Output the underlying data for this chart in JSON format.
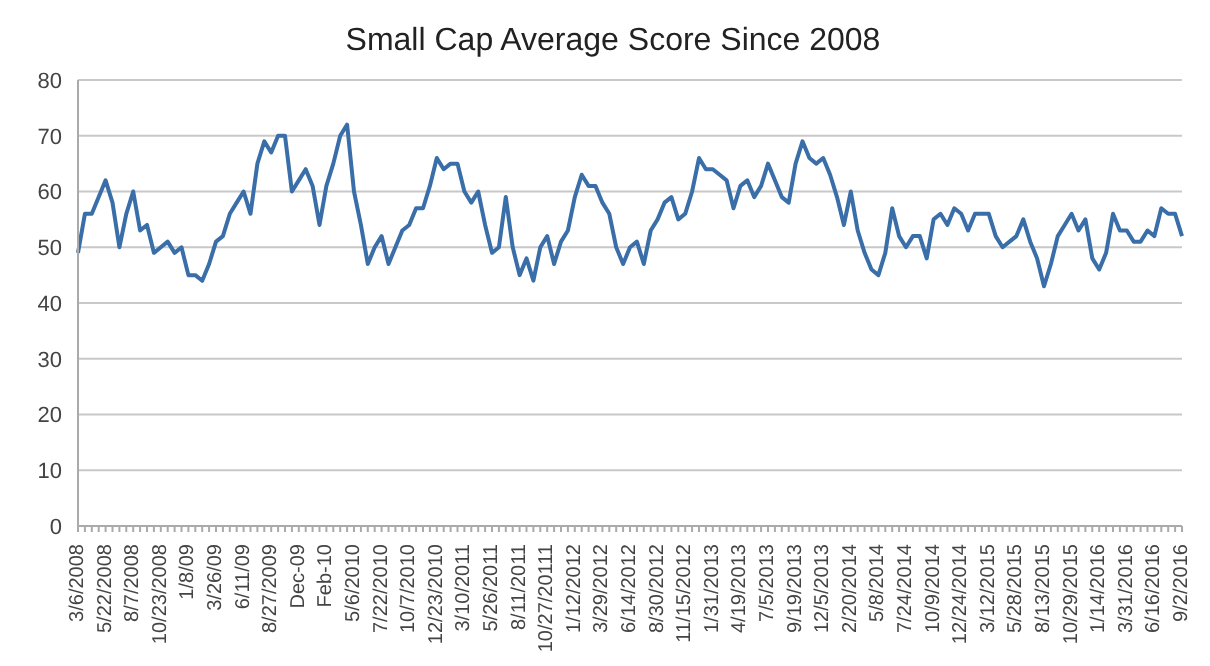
{
  "chart_data": {
    "type": "line",
    "title": "Small Cap Average Score Since 2008",
    "categories": [
      "3/6/2008",
      null,
      null,
      null,
      "5/22/2008",
      null,
      null,
      null,
      "8/7/2008",
      null,
      null,
      null,
      "10/23/2008",
      null,
      null,
      null,
      "1/8/09",
      null,
      null,
      null,
      "3/26/09",
      null,
      null,
      null,
      "6/11/09",
      null,
      null,
      null,
      "8/27/2009",
      null,
      null,
      null,
      "Dec-09",
      null,
      null,
      null,
      "Feb-10",
      null,
      null,
      null,
      "5/6/2010",
      null,
      null,
      null,
      "7/22/2010",
      null,
      null,
      null,
      "10/7/2010",
      null,
      null,
      null,
      "12/23/2010",
      null,
      null,
      null,
      "3/10/2011",
      null,
      null,
      null,
      "5/26/2011",
      null,
      null,
      null,
      "8/11/2011",
      null,
      null,
      null,
      "10/27/20111",
      null,
      null,
      null,
      "1/12/2012",
      null,
      null,
      null,
      "3/29/2012",
      null,
      null,
      null,
      "6/14/2012",
      null,
      null,
      null,
      "8/30/2012",
      null,
      null,
      null,
      "11/15/2012",
      null,
      null,
      null,
      "1/31/2013",
      null,
      null,
      null,
      "4/19/2013",
      null,
      null,
      null,
      "7/5/2013",
      null,
      null,
      null,
      "9/19/2013",
      null,
      null,
      null,
      "12/5/2013",
      null,
      null,
      null,
      "2/20/2014",
      null,
      null,
      null,
      "5/8/2014",
      null,
      null,
      null,
      "7/24/2014",
      null,
      null,
      null,
      "10/9/2014",
      null,
      null,
      null,
      "12/24/2014",
      null,
      null,
      null,
      "3/12/2015",
      null,
      null,
      null,
      "5/28/2015",
      null,
      null,
      null,
      "8/13/2015",
      null,
      null,
      null,
      "10/29/2015",
      null,
      null,
      null,
      "1/14/2016",
      null,
      null,
      null,
      "3/31/2016",
      null,
      null,
      null,
      "6/16/2016",
      null,
      null,
      null,
      "9/2/2016"
    ],
    "series": [
      {
        "color": "#3a6ea8",
        "values": [
          49,
          56,
          56,
          59,
          62,
          58,
          50,
          56,
          60,
          53,
          54,
          49,
          50,
          51,
          49,
          50,
          45,
          45,
          44,
          47,
          51,
          52,
          56,
          58,
          60,
          56,
          65,
          69,
          67,
          70,
          70,
          60,
          62,
          64,
          61,
          54,
          61,
          65,
          70,
          72,
          60,
          54,
          47,
          50,
          52,
          47,
          50,
          53,
          54,
          57,
          57,
          61,
          66,
          64,
          65,
          65,
          60,
          58,
          60,
          54,
          49,
          50,
          59,
          50,
          45,
          48,
          44,
          50,
          52,
          47,
          51,
          53,
          59,
          63,
          61,
          61,
          58,
          56,
          50,
          47,
          50,
          51,
          47,
          53,
          55,
          58,
          59,
          55,
          56,
          60,
          66,
          64,
          64,
          63,
          62,
          57,
          61,
          62,
          59,
          61,
          65,
          62,
          59,
          58,
          65,
          69,
          66,
          65,
          66,
          63,
          59,
          54,
          60,
          53,
          49,
          46,
          45,
          49,
          57,
          52,
          50,
          52,
          52,
          48,
          55,
          56,
          54,
          57,
          56,
          53,
          56,
          56,
          56,
          52,
          50,
          51,
          52,
          55,
          51,
          48,
          43,
          47,
          52,
          54,
          56,
          53,
          55,
          48,
          46,
          49,
          56,
          53,
          53,
          51,
          51,
          53,
          52,
          57,
          56,
          56,
          52
        ]
      }
    ],
    "ylim": [
      0,
      80
    ],
    "yticks": [
      0,
      10,
      20,
      30,
      40,
      50,
      60,
      70,
      80
    ],
    "grid": "y",
    "legend": false,
    "marker": "none",
    "line_style": "solid"
  }
}
